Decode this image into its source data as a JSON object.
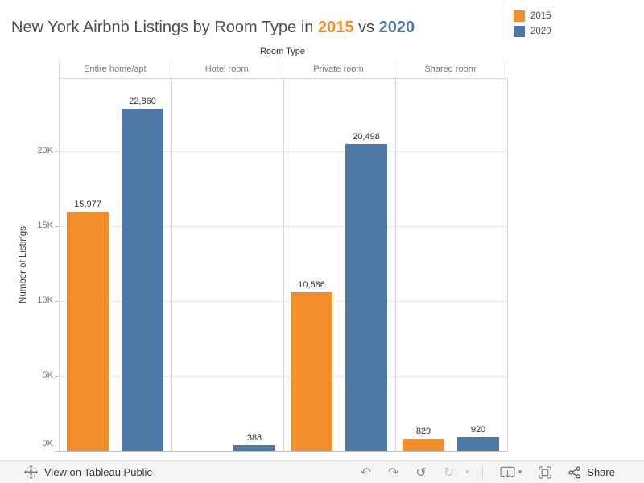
{
  "title": {
    "prefix": "New York Airbnb Listings by Room Type in ",
    "year1": "2015",
    "mid": " vs ",
    "year2": "2020"
  },
  "legend": {
    "items": [
      {
        "label": "2015",
        "color": "#f28e2b"
      },
      {
        "label": "2020",
        "color": "#4e79a7"
      }
    ]
  },
  "chart_data": {
    "type": "bar",
    "title": "New York Airbnb Listings by Room Type in 2015 vs 2020",
    "column_header": "Room Type",
    "categories": [
      "Entire home/apt",
      "Hotel room",
      "Private room",
      "Shared room"
    ],
    "series": [
      {
        "name": "2015",
        "color": "#f28e2b",
        "values": [
          15977,
          null,
          10586,
          829
        ],
        "labels": [
          "15,977",
          null,
          "10,586",
          "829"
        ]
      },
      {
        "name": "2020",
        "color": "#4e79a7",
        "values": [
          22860,
          388,
          20498,
          920
        ],
        "labels": [
          "22,860",
          "388",
          "20,498",
          "920"
        ]
      }
    ],
    "xlabel": "Room Type",
    "ylabel": "Number of Listings",
    "ylim": [
      0,
      24840
    ],
    "yticks": [
      {
        "value": 0,
        "label": "0K"
      },
      {
        "value": 5000,
        "label": "5K"
      },
      {
        "value": 10000,
        "label": "10K"
      },
      {
        "value": 15000,
        "label": "15K"
      },
      {
        "value": 20000,
        "label": "20K"
      }
    ],
    "grid": true,
    "legend_position": "top-right"
  },
  "toolbar": {
    "view_label": "View on Tableau Public",
    "share_label": "Share",
    "glyphs": {
      "undo": "↶",
      "redo": "↷",
      "reset": "↺",
      "refresh": "↻",
      "caret": "▾"
    }
  }
}
